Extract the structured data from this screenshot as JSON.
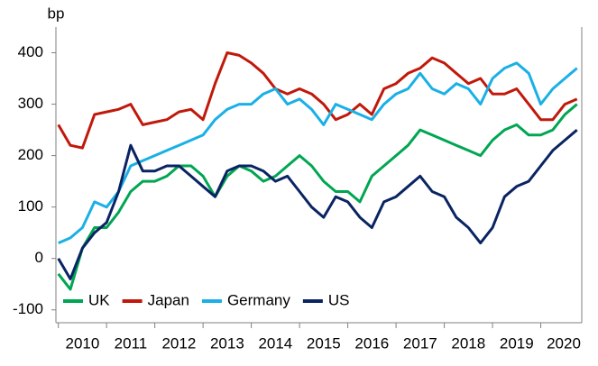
{
  "chart_data": {
    "type": "line",
    "y_label": "bp",
    "x": [
      2010,
      2010.25,
      2010.5,
      2010.75,
      2011,
      2011.25,
      2011.5,
      2011.75,
      2012,
      2012.25,
      2012.5,
      2012.75,
      2013,
      2013.25,
      2013.5,
      2013.75,
      2014,
      2014.25,
      2014.5,
      2014.75,
      2015,
      2015.25,
      2015.5,
      2015.75,
      2016,
      2016.25,
      2016.5,
      2016.75,
      2017,
      2017.25,
      2017.5,
      2017.75,
      2018,
      2018.25,
      2018.5,
      2018.75,
      2019,
      2019.25,
      2019.5,
      2019.75,
      2020,
      2020.25,
      2020.5,
      2020.75
    ],
    "series": [
      {
        "name": "Japan",
        "color": "#c0190b",
        "values": [
          260,
          220,
          215,
          280,
          285,
          290,
          300,
          260,
          265,
          270,
          285,
          290,
          270,
          340,
          400,
          395,
          380,
          360,
          330,
          320,
          330,
          320,
          300,
          270,
          280,
          300,
          280,
          330,
          340,
          360,
          370,
          390,
          380,
          360,
          340,
          350,
          320,
          320,
          330,
          300,
          270,
          270,
          300,
          310
        ]
      },
      {
        "name": "Germany",
        "color": "#1ab0e6",
        "values": [
          30,
          40,
          60,
          110,
          100,
          130,
          180,
          190,
          200,
          210,
          220,
          230,
          240,
          270,
          290,
          300,
          300,
          320,
          330,
          300,
          310,
          290,
          260,
          300,
          290,
          280,
          270,
          300,
          320,
          330,
          360,
          330,
          320,
          340,
          330,
          300,
          350,
          370,
          380,
          360,
          300,
          330,
          350,
          370
        ]
      },
      {
        "name": "UK",
        "color": "#00a651",
        "values": [
          -30,
          -60,
          20,
          60,
          60,
          90,
          130,
          150,
          150,
          160,
          180,
          180,
          160,
          120,
          160,
          180,
          170,
          150,
          160,
          180,
          200,
          180,
          150,
          130,
          130,
          110,
          160,
          180,
          200,
          220,
          250,
          240,
          230,
          220,
          210,
          200,
          230,
          250,
          260,
          240,
          240,
          250,
          280,
          300
        ]
      },
      {
        "name": "US",
        "color": "#0a2463",
        "values": [
          0,
          -40,
          20,
          50,
          70,
          130,
          220,
          170,
          170,
          180,
          180,
          160,
          140,
          120,
          170,
          180,
          180,
          170,
          150,
          160,
          130,
          100,
          80,
          120,
          110,
          80,
          60,
          110,
          120,
          140,
          160,
          130,
          120,
          80,
          60,
          30,
          60,
          120,
          140,
          150,
          180,
          210,
          230,
          250
        ]
      }
    ],
    "legend_order": [
      2,
      0,
      1,
      3
    ],
    "xlim": [
      2009.95,
      2020.85
    ],
    "xticks": [
      {
        "value": 2010,
        "label": "2010"
      },
      {
        "value": 2011,
        "label": "2011"
      },
      {
        "value": 2012,
        "label": "2012"
      },
      {
        "value": 2013,
        "label": "2013"
      },
      {
        "value": 2014,
        "label": "2014"
      },
      {
        "value": 2015,
        "label": "2015"
      },
      {
        "value": 2016,
        "label": "2016"
      },
      {
        "value": 2017,
        "label": "2017"
      },
      {
        "value": 2018,
        "label": "2018"
      },
      {
        "value": 2019,
        "label": "2019"
      },
      {
        "value": 2020,
        "label": "2020"
      }
    ],
    "ylim": [
      -125,
      450
    ],
    "yticks": [
      -100,
      0,
      100,
      200,
      300,
      400
    ],
    "grid": false,
    "legend": "lower left"
  }
}
